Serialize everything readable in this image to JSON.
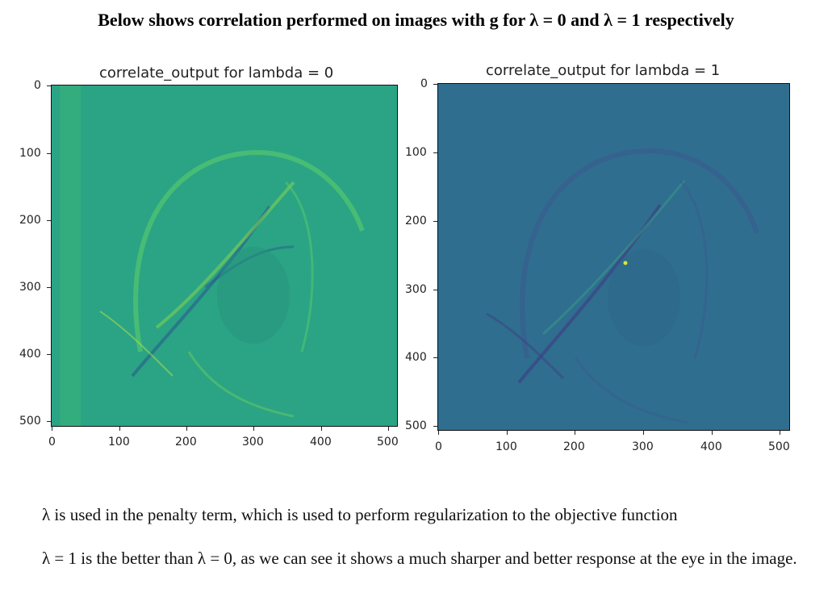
{
  "heading": "Below shows correlation performed on images with g for   λ = 0 and λ = 1 respectively",
  "panels": [
    {
      "title": "correlate_output for lambda = 0",
      "background_color": "#29a383",
      "y_ticks": [
        "0",
        "100",
        "200",
        "300",
        "400",
        "500"
      ],
      "x_ticks": [
        "0",
        "100",
        "200",
        "300",
        "400",
        "500"
      ]
    },
    {
      "title": "correlate_output for lambda = 1",
      "background_color": "#2f6e8e",
      "y_ticks": [
        "0",
        "100",
        "200",
        "300",
        "400",
        "500"
      ],
      "x_ticks": [
        "0",
        "100",
        "200",
        "300",
        "400",
        "500"
      ]
    }
  ],
  "paragraphs": [
    "λ is used in the penalty term, which is used to perform regularization to the objective function",
    "λ = 1 is the better than λ = 0, as we can see it shows a much sharper and better response at the eye in the image."
  ]
}
